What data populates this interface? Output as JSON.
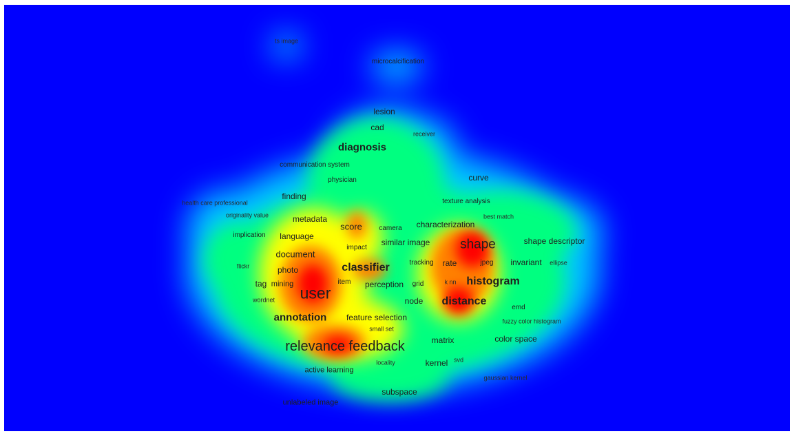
{
  "map": {
    "background_color": "#0000fe",
    "color_scale": [
      "#0000fe",
      "#00c8ff",
      "#00ff80",
      "#ffff00",
      "#ff8000",
      "#ff0000"
    ],
    "terms": [
      {
        "id": "ts-image",
        "label": "ts image"
      },
      {
        "id": "microcalcification",
        "label": "microcalcification"
      },
      {
        "id": "lesion",
        "label": "lesion"
      },
      {
        "id": "cad",
        "label": "cad"
      },
      {
        "id": "receiver",
        "label": "receiver"
      },
      {
        "id": "diagnosis",
        "label": "diagnosis"
      },
      {
        "id": "communication-system",
        "label": "communication system"
      },
      {
        "id": "physician",
        "label": "physician"
      },
      {
        "id": "curve",
        "label": "curve"
      },
      {
        "id": "finding",
        "label": "finding"
      },
      {
        "id": "health-care-professional",
        "label": "health care professional"
      },
      {
        "id": "texture-analysis",
        "label": "texture analysis"
      },
      {
        "id": "originality-value",
        "label": "originality value"
      },
      {
        "id": "metadata",
        "label": "metadata"
      },
      {
        "id": "best-match",
        "label": "best match"
      },
      {
        "id": "score",
        "label": "score"
      },
      {
        "id": "camera",
        "label": "camera"
      },
      {
        "id": "characterization",
        "label": "characterization"
      },
      {
        "id": "implication",
        "label": "implication"
      },
      {
        "id": "language",
        "label": "language"
      },
      {
        "id": "similar-image",
        "label": "similar image"
      },
      {
        "id": "shape",
        "label": "shape"
      },
      {
        "id": "shape-descriptor",
        "label": "shape descriptor"
      },
      {
        "id": "impact",
        "label": "impact"
      },
      {
        "id": "document",
        "label": "document"
      },
      {
        "id": "flickr",
        "label": "flickr"
      },
      {
        "id": "photo",
        "label": "photo"
      },
      {
        "id": "classifier",
        "label": "classifier"
      },
      {
        "id": "tracking",
        "label": "tracking"
      },
      {
        "id": "rate",
        "label": "rate"
      },
      {
        "id": "jpeg",
        "label": "jpeg"
      },
      {
        "id": "invariant",
        "label": "invariant"
      },
      {
        "id": "ellipse",
        "label": "ellipse"
      },
      {
        "id": "tag",
        "label": "tag"
      },
      {
        "id": "mining",
        "label": "mining"
      },
      {
        "id": "item",
        "label": "item"
      },
      {
        "id": "perception",
        "label": "perception"
      },
      {
        "id": "grid",
        "label": "grid"
      },
      {
        "id": "k-nn",
        "label": "k nn"
      },
      {
        "id": "histogram",
        "label": "histogram"
      },
      {
        "id": "user",
        "label": "user"
      },
      {
        "id": "wordnet",
        "label": "wordnet"
      },
      {
        "id": "node",
        "label": "node"
      },
      {
        "id": "distance",
        "label": "distance"
      },
      {
        "id": "emd",
        "label": "emd"
      },
      {
        "id": "annotation",
        "label": "annotation"
      },
      {
        "id": "feature-selection",
        "label": "feature selection"
      },
      {
        "id": "fuzzy-color-histogram",
        "label": "fuzzy color histogram"
      },
      {
        "id": "small-set",
        "label": "small set"
      },
      {
        "id": "matrix",
        "label": "matrix"
      },
      {
        "id": "color-space",
        "label": "color space"
      },
      {
        "id": "relevance-feedback",
        "label": "relevance feedback"
      },
      {
        "id": "locality",
        "label": "locality"
      },
      {
        "id": "kernel",
        "label": "kernel"
      },
      {
        "id": "svd",
        "label": "svd"
      },
      {
        "id": "active-learning",
        "label": "active learning"
      },
      {
        "id": "gaussian-kernel",
        "label": "gaussian kernel"
      },
      {
        "id": "subspace",
        "label": "subspace"
      },
      {
        "id": "unlabeled-image",
        "label": "unlabeled image"
      }
    ]
  }
}
